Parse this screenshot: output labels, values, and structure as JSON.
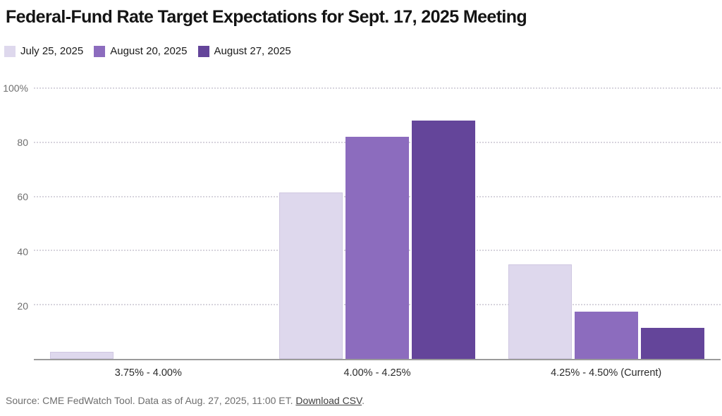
{
  "title": "Federal-Fund Rate Target Expectations for Sept. 17, 2025 Meeting",
  "colors": {
    "series_light": "#ded8ed",
    "series_medium": "#8c6cbe",
    "series_dark": "#64459a",
    "baseline": "#9b9b9b",
    "gridline": "#d7d4dd"
  },
  "legend": [
    {
      "label": "July 25, 2025",
      "color": "#ded8ed"
    },
    {
      "label": "August 20, 2025",
      "color": "#8c6cbe"
    },
    {
      "label": "August 27, 2025",
      "color": "#64459a"
    }
  ],
  "chart_data": {
    "type": "bar",
    "categories": [
      "3.75% - 4.00%",
      "4.00% - 4.25%",
      "4.25% - 4.50% (Current)"
    ],
    "series": [
      {
        "name": "July 25, 2025",
        "color": "#ded8ed",
        "border": "#cfc7e1",
        "values": [
          2.5,
          61.5,
          35
        ]
      },
      {
        "name": "August 20, 2025",
        "color": "#8c6cbe",
        "border": "",
        "values": [
          0,
          82,
          17.5
        ]
      },
      {
        "name": "August 27, 2025",
        "color": "#64459a",
        "border": "",
        "values": [
          0,
          88,
          11.5
        ]
      }
    ],
    "title": "Federal-Fund Rate Target Expectations for Sept. 17, 2025 Meeting",
    "xlabel": "",
    "ylabel": "",
    "ylim": [
      0,
      100
    ],
    "yticks": [
      {
        "value": 100,
        "label": "100%"
      },
      {
        "value": 80,
        "label": "80"
      },
      {
        "value": 60,
        "label": "60"
      },
      {
        "value": 40,
        "label": "40"
      },
      {
        "value": 20,
        "label": "20"
      }
    ],
    "grid": "horizontal-dotted",
    "legend_position": "top-left"
  },
  "source": {
    "prefix": "Source: CME FedWatch Tool. Data as of Aug. 27, 2025, 11:00 ET. ",
    "link_label": "Download CSV",
    "suffix": "."
  }
}
